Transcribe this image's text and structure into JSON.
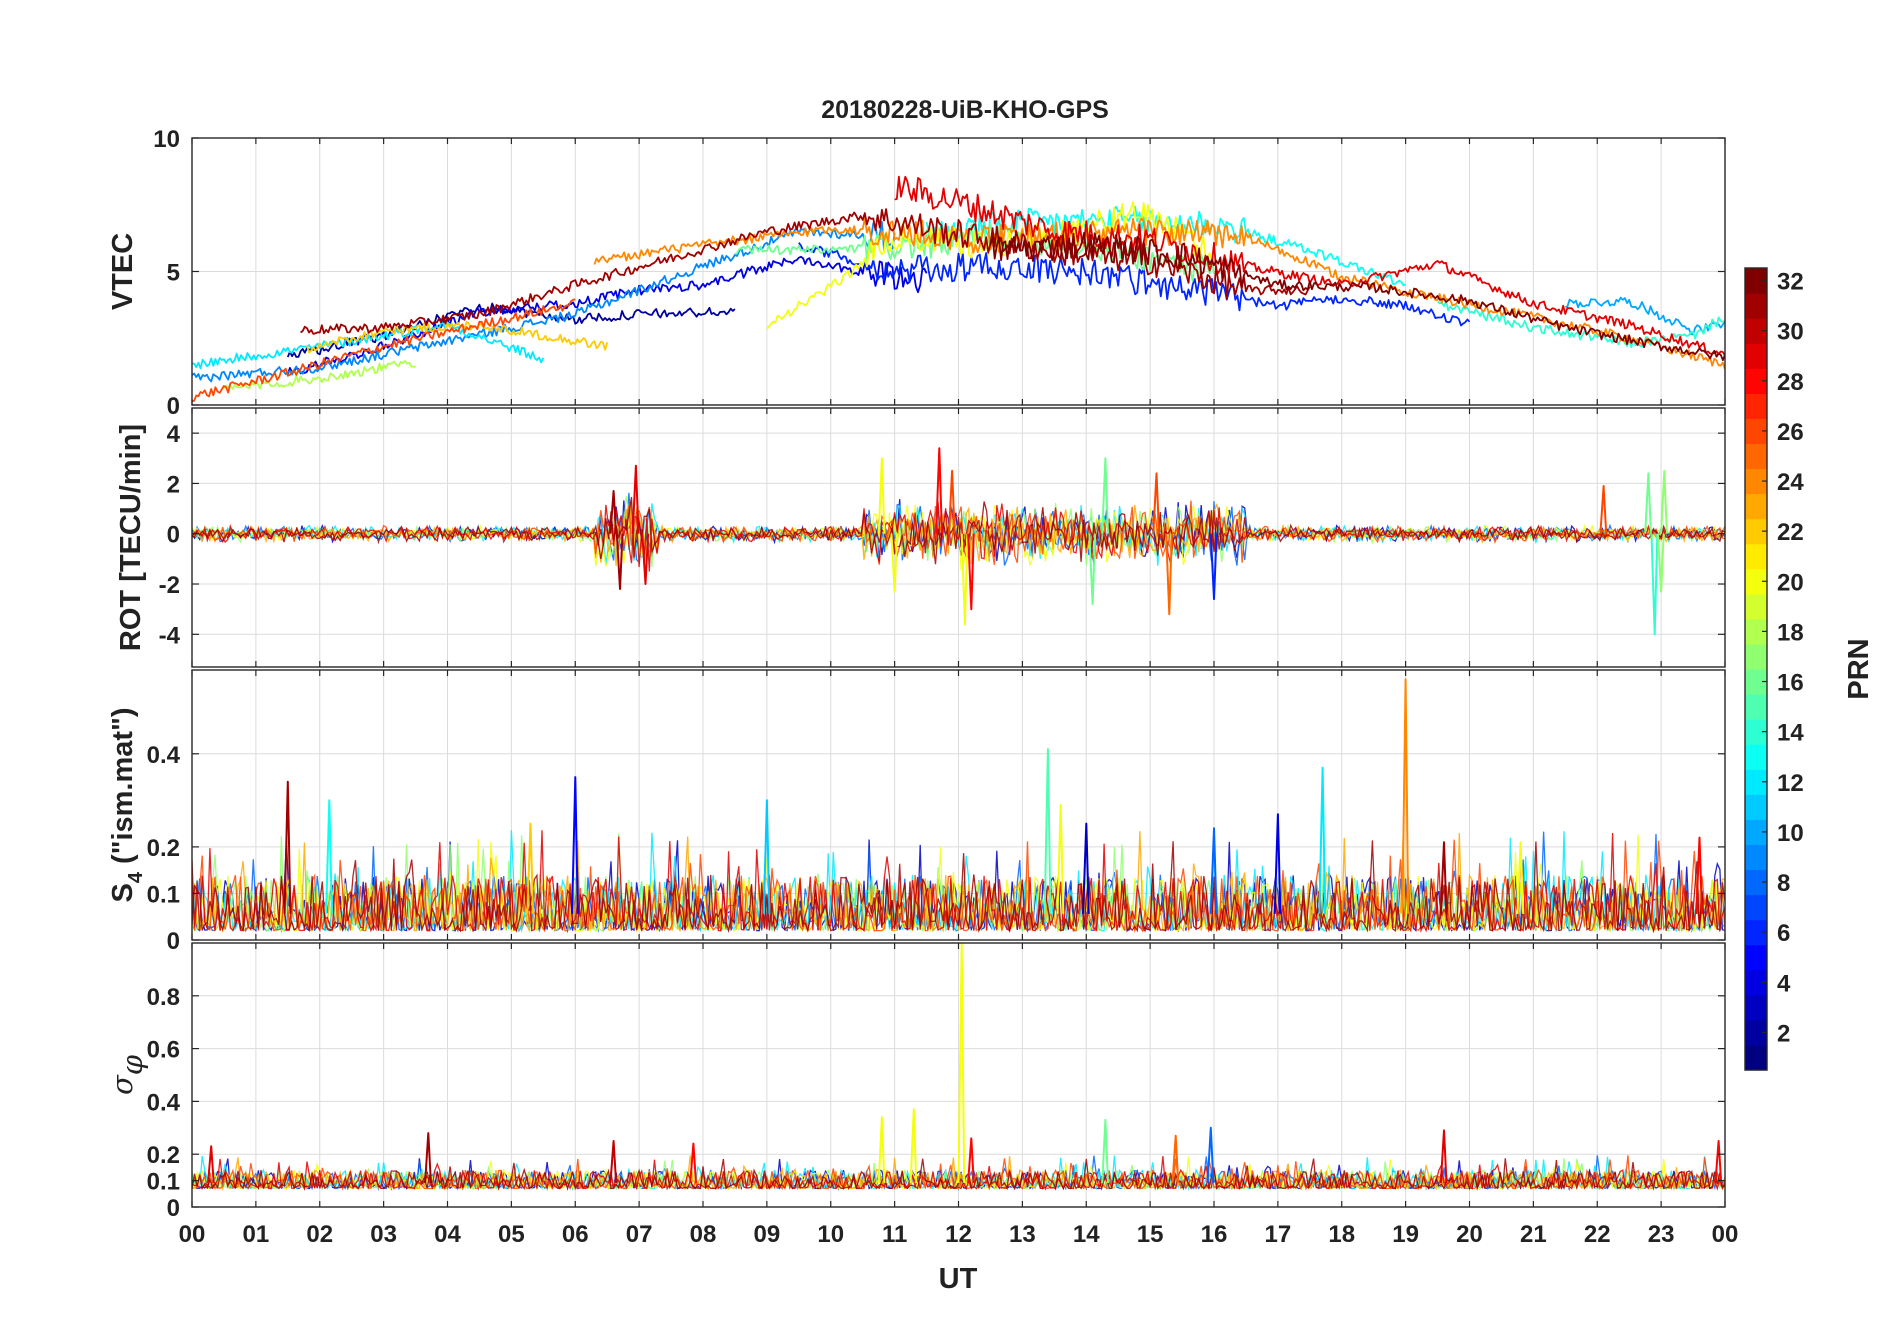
{
  "chart_data": {
    "title": "20180228-UiB-KHO-GPS",
    "type": "line",
    "x_axis": {
      "label": "UT",
      "range": [
        0,
        24
      ],
      "tick_labels": [
        "00",
        "01",
        "02",
        "03",
        "04",
        "05",
        "06",
        "07",
        "08",
        "09",
        "10",
        "11",
        "12",
        "13",
        "14",
        "15",
        "16",
        "17",
        "18",
        "19",
        "20",
        "21",
        "22",
        "23",
        "00"
      ]
    },
    "grid": true,
    "colorbar": {
      "label": "PRN",
      "range": [
        1,
        32
      ],
      "colormap": "jet",
      "tick_labels": [
        "2",
        "4",
        "6",
        "8",
        "10",
        "12",
        "14",
        "16",
        "18",
        "20",
        "22",
        "24",
        "26",
        "28",
        "30",
        "32"
      ],
      "placement": "right"
    },
    "panels": [
      {
        "ylabel": "VTEC",
        "ylim": [
          0,
          10
        ],
        "yticks": [
          0,
          5,
          10
        ],
        "ytick_labels": [
          "0",
          "5",
          "10"
        ],
        "series": [
          {
            "prn": 2,
            "x": [
              1.5,
              3,
              4.5,
              6,
              7,
              8.5
            ],
            "y": [
              1.8,
              2.6,
              3.7,
              3.2,
              3.4,
              3.5
            ]
          },
          {
            "prn": 4,
            "x": [
              1.5,
              3,
              4.5,
              6,
              7,
              8,
              9.5,
              10.5,
              11.5
            ],
            "y": [
              1.2,
              2.2,
              3.5,
              3.8,
              4.3,
              4.5,
              5.5,
              5.0,
              4.6
            ]
          },
          {
            "prn": 6,
            "x": [
              9.5,
              11,
              12.5,
              14,
              15,
              16,
              17,
              18,
              19,
              20
            ],
            "y": [
              6.0,
              5.0,
              5.2,
              5.0,
              4.6,
              4.2,
              3.7,
              4.0,
              3.7,
              3.0
            ]
          },
          {
            "prn": 9,
            "x": [
              0,
              2,
              4,
              6,
              8,
              9.5,
              11
            ],
            "y": [
              1.0,
              1.4,
              2.4,
              3.4,
              5.2,
              6.5,
              6.3
            ]
          },
          {
            "prn": 10,
            "x": [
              21.5,
              22.5,
              23.5,
              24
            ],
            "y": [
              3.8,
              3.9,
              2.8,
              3.0
            ]
          },
          {
            "prn": 12,
            "x": [
              0,
              2,
              4,
              5.5
            ],
            "y": [
              1.5,
              2.2,
              3.0,
              1.7
            ]
          },
          {
            "prn": 13,
            "x": [
              11.5,
              13,
              14.5,
              16,
              17.5,
              19
            ],
            "y": [
              6.4,
              6.8,
              6.9,
              6.8,
              5.8,
              4.5
            ]
          },
          {
            "prn": 14,
            "x": [
              19.5,
              21,
              22.5,
              23.5,
              24
            ],
            "y": [
              3.8,
              2.9,
              2.3,
              2.6,
              3.3
            ]
          },
          {
            "prn": 16,
            "x": [
              8.5,
              10,
              11.5,
              12.5,
              14,
              16
            ],
            "y": [
              5.8,
              5.8,
              6.0,
              6.3,
              6.0,
              5.0
            ]
          },
          {
            "prn": 18,
            "x": [
              0.5,
              2,
              3.5
            ],
            "y": [
              0.6,
              1.0,
              1.6
            ]
          },
          {
            "prn": 20,
            "x": [
              9,
              10,
              11,
              12.5,
              14,
              15,
              16
            ],
            "y": [
              3.0,
              4.4,
              6.3,
              6.0,
              6.7,
              7.2,
              5.5
            ]
          },
          {
            "prn": 22,
            "x": [
              1.8,
              3,
              4.5,
              6.5
            ],
            "y": [
              2.1,
              2.8,
              3.0,
              2.2
            ]
          },
          {
            "prn": 24,
            "x": [
              6.3,
              8,
              10,
              12.5,
              15,
              16.5,
              18,
              19.5,
              21,
              22.5,
              24
            ],
            "y": [
              5.4,
              6.0,
              6.6,
              6.2,
              6.5,
              6.3,
              4.8,
              4.0,
              3.3,
              2.5,
              1.5
            ]
          },
          {
            "prn": 26,
            "x": [
              0,
              1.5,
              3,
              4.5,
              6
            ],
            "y": [
              0.3,
              1.2,
              2.2,
              3.0,
              3.8
            ]
          },
          {
            "prn": 29,
            "x": [
              11,
              12,
              13.5,
              15,
              16.5,
              18,
              19.5,
              21,
              22.5,
              24
            ],
            "y": [
              8.2,
              7.6,
              6.5,
              6.2,
              5.2,
              4.5,
              5.3,
              3.8,
              3.0,
              1.9
            ]
          },
          {
            "prn": 31,
            "x": [
              1.7,
              3,
              4.5,
              6,
              7.5,
              9,
              10.5,
              12,
              13.5,
              15,
              16.5,
              17.5
            ],
            "y": [
              2.8,
              2.9,
              3.4,
              4.5,
              5.5,
              6.5,
              7.1,
              6.4,
              5.8,
              5.4,
              4.3,
              4.3
            ]
          },
          {
            "prn": 32,
            "x": [
              12.5,
              14,
              15.5,
              17,
              18.5,
              20,
              21.5,
              23,
              24
            ],
            "y": [
              5.8,
              6.0,
              5.6,
              4.5,
              4.4,
              3.9,
              2.9,
              2.2,
              1.8
            ]
          }
        ]
      },
      {
        "ylabel": "ROT [TECU/min]",
        "ylim": [
          -5.3,
          5.0
        ],
        "yticks": [
          -4,
          -2,
          0,
          2,
          4
        ],
        "ytick_labels": [
          "-4",
          "-2",
          "0",
          "2",
          "4"
        ],
        "baseline": 0,
        "spikes": [
          {
            "prn": 31,
            "x": 6.6,
            "y": 1.7
          },
          {
            "prn": 31,
            "x": 6.7,
            "y": -2.2
          },
          {
            "prn": 29,
            "x": 6.95,
            "y": 2.7
          },
          {
            "prn": 29,
            "x": 7.1,
            "y": -2.0
          },
          {
            "prn": 20,
            "x": 10.8,
            "y": 3.0
          },
          {
            "prn": 20,
            "x": 11.0,
            "y": -2.3
          },
          {
            "prn": 28,
            "x": 11.7,
            "y": 3.4
          },
          {
            "prn": 26,
            "x": 11.9,
            "y": 2.5
          },
          {
            "prn": 20,
            "x": 12.1,
            "y": -3.6
          },
          {
            "prn": 28,
            "x": 12.2,
            "y": -3.0
          },
          {
            "prn": 16,
            "x": 14.3,
            "y": 3.0
          },
          {
            "prn": 16,
            "x": 14.1,
            "y": -2.8
          },
          {
            "prn": 25,
            "x": 15.3,
            "y": -3.2
          },
          {
            "prn": 26,
            "x": 15.1,
            "y": 2.4
          },
          {
            "prn": 6,
            "x": 16.0,
            "y": -2.6
          },
          {
            "prn": 26,
            "x": 22.1,
            "y": 1.9
          },
          {
            "prn": 16,
            "x": 22.8,
            "y": 2.4
          },
          {
            "prn": 14,
            "x": 22.9,
            "y": -4.0
          },
          {
            "prn": 17,
            "x": 23.0,
            "y": -2.3
          },
          {
            "prn": 17,
            "x": 23.05,
            "y": 2.5
          }
        ]
      },
      {
        "ylabel": "S4 (\"ism.mat\")",
        "ylabel_main": "S",
        "ylabel_subscript": "4",
        "ylabel_suffix": " (\"ism.mat\")",
        "ylim": [
          0,
          0.58
        ],
        "yticks": [
          0,
          0.1,
          0.2,
          0.4
        ],
        "ytick_labels": [
          "0",
          "0.1",
          "0.2",
          "0.4"
        ],
        "baseline_range": [
          0.02,
          0.14
        ],
        "spikes": [
          {
            "prn": 31,
            "x": 1.5,
            "y": 0.34
          },
          {
            "prn": 13,
            "x": 2.15,
            "y": 0.3
          },
          {
            "prn": 22,
            "x": 5.3,
            "y": 0.25
          },
          {
            "prn": 5,
            "x": 6.0,
            "y": 0.35
          },
          {
            "prn": 11,
            "x": 9.0,
            "y": 0.3
          },
          {
            "prn": 15,
            "x": 13.4,
            "y": 0.41
          },
          {
            "prn": 20,
            "x": 13.6,
            "y": 0.29
          },
          {
            "prn": 3,
            "x": 14.0,
            "y": 0.25
          },
          {
            "prn": 8,
            "x": 16.0,
            "y": 0.24
          },
          {
            "prn": 4,
            "x": 17.0,
            "y": 0.27
          },
          {
            "prn": 12,
            "x": 17.7,
            "y": 0.37
          },
          {
            "prn": 24,
            "x": 19.0,
            "y": 0.56
          },
          {
            "prn": 31,
            "x": 19.6,
            "y": 0.21
          },
          {
            "prn": 20,
            "x": 20.8,
            "y": 0.21
          },
          {
            "prn": 28,
            "x": 23.6,
            "y": 0.22
          }
        ]
      },
      {
        "ylabel": "σφ",
        "ylabel_main": "σ",
        "ylabel_subscript": "φ",
        "ylim": [
          0,
          1.0
        ],
        "yticks": [
          0,
          0.1,
          0.2,
          0.4,
          0.6,
          0.8
        ],
        "ytick_labels": [
          "0",
          "0.1",
          "0.2",
          "0.4",
          "0.6",
          "0.8"
        ],
        "baseline_range": [
          0.07,
          0.14
        ],
        "spikes": [
          {
            "prn": 29,
            "x": 0.3,
            "y": 0.23
          },
          {
            "prn": 31,
            "x": 3.7,
            "y": 0.28
          },
          {
            "prn": 30,
            "x": 6.6,
            "y": 0.25
          },
          {
            "prn": 28,
            "x": 7.85,
            "y": 0.24
          },
          {
            "prn": 20,
            "x": 10.8,
            "y": 0.34
          },
          {
            "prn": 20,
            "x": 11.3,
            "y": 0.37
          },
          {
            "prn": 20,
            "x": 12.05,
            "y": 1.0
          },
          {
            "prn": 28,
            "x": 12.2,
            "y": 0.26
          },
          {
            "prn": 16,
            "x": 14.3,
            "y": 0.33
          },
          {
            "prn": 25,
            "x": 15.4,
            "y": 0.27
          },
          {
            "prn": 8,
            "x": 15.95,
            "y": 0.3
          },
          {
            "prn": 29,
            "x": 19.6,
            "y": 0.29
          },
          {
            "prn": 28,
            "x": 23.9,
            "y": 0.25
          }
        ]
      }
    ]
  }
}
